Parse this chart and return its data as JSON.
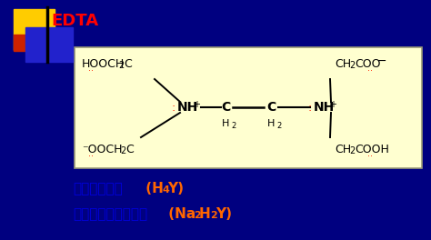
{
  "bg_color": "#000080",
  "box_facecolor": "#ffffd0",
  "box_edgecolor": "#999977",
  "title": "EDTA",
  "title_color": "#ff0000",
  "logo_yellow": "#ffcc00",
  "logo_red": "#cc2200",
  "logo_blue": "#2222cc",
  "text_blue": "#0000dd",
  "text_orange": "#ff6600",
  "text_black": "#000000",
  "dot_red": "#ff2200",
  "label1_zh": "乙二胺四乙酸",
  "label2_zh": "乙二胺四乙酸二鑰盐"
}
